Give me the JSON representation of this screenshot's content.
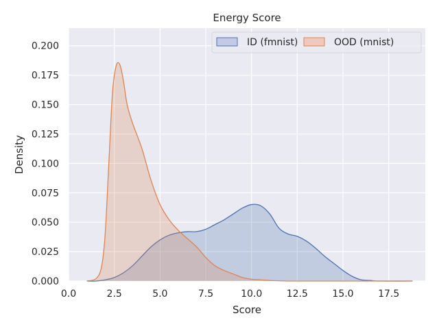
{
  "chart_data": {
    "type": "area",
    "title": "Energy Score",
    "xlabel": "Score",
    "ylabel": "Density",
    "xlim": [
      0,
      19.5
    ],
    "ylim": [
      0,
      0.215
    ],
    "xticks": [
      0.0,
      2.5,
      5.0,
      7.5,
      10.0,
      12.5,
      15.0,
      17.5
    ],
    "xtick_labels": [
      "0.0",
      "2.5",
      "5.0",
      "7.5",
      "10.0",
      "12.5",
      "15.0",
      "17.5"
    ],
    "yticks": [
      0.0,
      0.025,
      0.05,
      0.075,
      0.1,
      0.125,
      0.15,
      0.175,
      0.2
    ],
    "ytick_labels": [
      "0.000",
      "0.025",
      "0.050",
      "0.075",
      "0.100",
      "0.125",
      "0.150",
      "0.175",
      "0.200"
    ],
    "grid": true,
    "legend": {
      "placement": "top-right",
      "columns": 2
    },
    "series": [
      {
        "name": "ID (fmnist)",
        "color": "#4c72b0",
        "fill": "#c4cae6",
        "x": [
          1.0,
          1.5,
          2.0,
          2.5,
          3.0,
          3.5,
          4.0,
          4.5,
          5.0,
          5.5,
          6.0,
          6.5,
          7.0,
          7.5,
          8.0,
          8.5,
          9.0,
          9.5,
          10.0,
          10.5,
          11.0,
          11.5,
          12.0,
          12.5,
          13.0,
          13.5,
          14.0,
          14.5,
          15.0,
          15.5,
          16.0,
          16.5,
          17.0,
          18.8
        ],
        "y": [
          0.0,
          0.0,
          0.001,
          0.003,
          0.007,
          0.013,
          0.021,
          0.029,
          0.035,
          0.039,
          0.041,
          0.042,
          0.042,
          0.044,
          0.048,
          0.052,
          0.057,
          0.062,
          0.065,
          0.064,
          0.057,
          0.045,
          0.04,
          0.038,
          0.034,
          0.028,
          0.021,
          0.015,
          0.009,
          0.004,
          0.001,
          0.0005,
          0.0,
          0.0
        ]
      },
      {
        "name": "OOD (mnist)",
        "color": "#dd8452",
        "fill": "#f0c9be",
        "x": [
          1.0,
          1.5,
          1.8,
          2.0,
          2.2,
          2.4,
          2.6,
          2.8,
          3.0,
          3.2,
          3.5,
          4.0,
          4.5,
          5.0,
          5.5,
          6.0,
          6.5,
          7.0,
          7.5,
          8.0,
          8.5,
          9.0,
          9.5,
          10.0,
          10.5,
          11.0,
          11.5,
          12.0,
          13.0,
          14.0,
          18.8
        ],
        "y": [
          0.0,
          0.002,
          0.012,
          0.04,
          0.1,
          0.16,
          0.183,
          0.184,
          0.17,
          0.15,
          0.134,
          0.113,
          0.086,
          0.065,
          0.052,
          0.043,
          0.036,
          0.029,
          0.02,
          0.013,
          0.009,
          0.006,
          0.003,
          0.0015,
          0.001,
          0.0005,
          0.0002,
          0.0,
          0.0,
          0.0,
          0.0
        ]
      }
    ]
  }
}
